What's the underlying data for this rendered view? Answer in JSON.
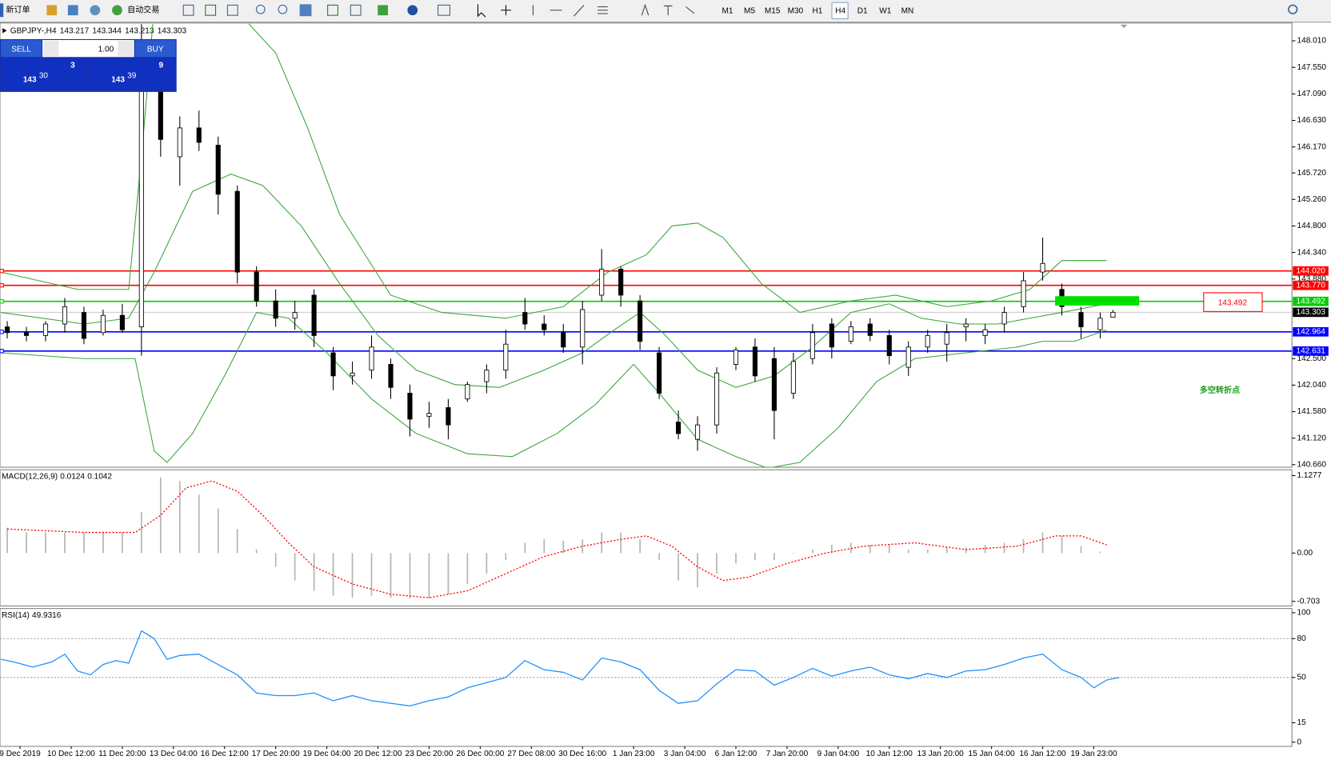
{
  "toolbar": {
    "new_order": "新订单",
    "auto_trading": "自动交易",
    "timeframes": [
      "M1",
      "M5",
      "M15",
      "M30",
      "H1",
      "H4",
      "D1",
      "W1",
      "MN"
    ],
    "active_timeframe": 5
  },
  "trade_panel": {
    "sell": "SELL",
    "buy": "BUY",
    "lots": "1.00",
    "bid": {
      "big": "143",
      "main": "30",
      "small": "3"
    },
    "ask": {
      "big": "143",
      "main": "39",
      "small": "9"
    }
  },
  "annotations": {
    "text": "多空转折点",
    "price_box": "143.492"
  },
  "chart_data": [
    {
      "type": "candlestick",
      "title": "GBPJPY-,H4",
      "ohlc": [
        143.217,
        143.344,
        143.213,
        143.303
      ],
      "xlim": [
        -3,
        199
      ],
      "ylim": [
        140.616,
        148.305
      ],
      "yticks": [
        {
          "value": 148.01,
          "label": "148.010"
        },
        {
          "value": 147.55,
          "label": "147.550"
        },
        {
          "value": 147.09,
          "label": "147.090"
        },
        {
          "value": 146.63,
          "label": "146.630"
        },
        {
          "value": 146.17,
          "label": "146.170"
        },
        {
          "value": 145.72,
          "label": "145.720"
        },
        {
          "value": 145.26,
          "label": "145.260"
        },
        {
          "value": 144.8,
          "label": "144.800"
        },
        {
          "value": 144.34,
          "label": "144.340"
        },
        {
          "value": 143.88,
          "label": "143.880"
        },
        {
          "value": 142.5,
          "label": "142.500"
        },
        {
          "value": 142.04,
          "label": "142.040"
        },
        {
          "value": 141.58,
          "label": "141.580"
        },
        {
          "value": 141.12,
          "label": "141.120"
        },
        {
          "value": 140.66,
          "label": "140.660"
        }
      ],
      "xticks": [
        {
          "value": 0,
          "label": "9 Dec 2019"
        },
        {
          "value": 8,
          "label": "10 Dec 12:00"
        },
        {
          "value": 16,
          "label": "11 Dec 20:00"
        },
        {
          "value": 24,
          "label": "13 Dec 04:00"
        },
        {
          "value": 32,
          "label": "16 Dec 12:00"
        },
        {
          "value": 40,
          "label": "17 Dec 20:00"
        },
        {
          "value": 48,
          "label": "19 Dec 04:00"
        },
        {
          "value": 56,
          "label": "20 Dec 12:00"
        },
        {
          "value": 64,
          "label": "23 Dec 20:00"
        },
        {
          "value": 72,
          "label": "26 Dec 00:00"
        },
        {
          "value": 80,
          "label": "27 Dec 08:00"
        },
        {
          "value": 88,
          "label": "30 Dec 16:00"
        },
        {
          "value": 96,
          "label": "1 Jan 23:00"
        },
        {
          "value": 104,
          "label": "3 Jan 04:00"
        },
        {
          "value": 112,
          "label": "6 Jan 12:00"
        },
        {
          "value": 120,
          "label": "7 Jan 20:00"
        },
        {
          "value": 128,
          "label": "9 Jan 04:00"
        },
        {
          "value": 136,
          "label": "10 Jan 12:00"
        },
        {
          "value": 144,
          "label": "13 Jan 20:00"
        },
        {
          "value": 152,
          "label": "15 Jan 04:00"
        },
        {
          "value": 160,
          "label": "16 Jan 12:00"
        },
        {
          "value": 168,
          "label": "19 Jan 23:00"
        }
      ],
      "levels": [
        {
          "value": 144.02,
          "label": "144.020",
          "color": "#ff0000"
        },
        {
          "value": 143.77,
          "label": "143.770",
          "color": "#ff0000"
        },
        {
          "value": 143.492,
          "color": "#00cc00"
        },
        {
          "value": 143.303,
          "color": "#c8c8c8",
          "tag_color": "#000000"
        },
        {
          "value": 142.964,
          "color": "#0000ff"
        },
        {
          "value": 142.631,
          "color": "#0000ff"
        }
      ],
      "x": [
        -2,
        1,
        4,
        7,
        10,
        13,
        16,
        19,
        22,
        25,
        28,
        31,
        34,
        37,
        40,
        43,
        46,
        49,
        52,
        55,
        58,
        61,
        64,
        67,
        70,
        73,
        76,
        79,
        82,
        85,
        88,
        91,
        94,
        97,
        100,
        103,
        106,
        109,
        112,
        115,
        118,
        121,
        124,
        127,
        130,
        133,
        136,
        139,
        142,
        145,
        148,
        151,
        154,
        157,
        160,
        163,
        166,
        169,
        171
      ],
      "open": [
        143.05,
        142.95,
        142.9,
        143.1,
        143.3,
        142.95,
        143.25,
        143.05,
        147.3,
        146.0,
        146.5,
        146.2,
        145.4,
        144.0,
        143.5,
        143.2,
        143.6,
        142.6,
        142.2,
        142.3,
        142.4,
        141.9,
        141.5,
        141.65,
        141.8,
        142.1,
        142.3,
        143.3,
        143.1,
        142.95,
        142.7,
        143.6,
        144.05,
        143.5,
        142.6,
        141.4,
        141.1,
        141.35,
        142.4,
        142.7,
        142.5,
        141.9,
        142.5,
        143.1,
        142.8,
        143.1,
        142.9,
        142.35,
        142.7,
        142.75,
        143.05,
        142.9,
        143.1,
        143.4,
        144.0,
        143.7,
        143.3,
        143.0,
        143.217
      ],
      "high": [
        143.15,
        143.05,
        143.15,
        143.55,
        143.4,
        143.35,
        143.45,
        148.3,
        147.45,
        146.7,
        146.8,
        146.35,
        145.5,
        144.1,
        143.7,
        143.5,
        143.7,
        142.7,
        142.45,
        142.9,
        142.5,
        142.05,
        141.75,
        141.8,
        142.1,
        142.4,
        143.0,
        143.55,
        143.25,
        143.1,
        143.5,
        144.4,
        144.1,
        143.6,
        142.7,
        141.6,
        141.5,
        142.35,
        142.7,
        142.85,
        142.7,
        142.6,
        143.1,
        143.2,
        143.15,
        143.2,
        143.0,
        142.8,
        143.0,
        143.1,
        143.2,
        143.1,
        143.4,
        144.0,
        144.6,
        143.8,
        143.4,
        143.3,
        143.344
      ],
      "low": [
        142.85,
        142.8,
        142.8,
        142.95,
        142.75,
        142.9,
        142.95,
        142.55,
        146.0,
        145.5,
        146.1,
        145.0,
        143.8,
        143.4,
        143.05,
        143.0,
        142.7,
        141.95,
        142.05,
        142.15,
        141.8,
        141.15,
        141.3,
        141.1,
        141.75,
        141.9,
        142.15,
        143.0,
        142.9,
        142.6,
        142.4,
        143.5,
        143.4,
        142.65,
        141.8,
        141.1,
        140.9,
        141.2,
        142.3,
        142.1,
        141.1,
        141.8,
        142.4,
        142.5,
        142.75,
        142.8,
        142.4,
        142.2,
        142.6,
        142.45,
        142.8,
        142.75,
        142.95,
        143.3,
        143.85,
        143.25,
        142.85,
        142.85,
        143.213
      ],
      "close": [
        142.95,
        142.9,
        143.1,
        143.4,
        142.85,
        143.25,
        143.0,
        147.3,
        146.3,
        146.5,
        146.25,
        145.35,
        144.0,
        143.5,
        143.2,
        143.3,
        142.9,
        142.2,
        142.25,
        142.7,
        142.0,
        141.45,
        141.55,
        141.35,
        142.05,
        142.3,
        142.75,
        143.1,
        143.0,
        142.7,
        143.35,
        144.05,
        143.6,
        142.8,
        141.9,
        141.2,
        141.35,
        142.25,
        142.65,
        142.2,
        141.6,
        142.45,
        142.95,
        142.7,
        143.05,
        142.9,
        142.55,
        142.7,
        142.9,
        142.95,
        143.1,
        143.0,
        143.3,
        143.85,
        144.15,
        143.4,
        143.05,
        143.2,
        143.303
      ],
      "series": [
        {
          "color": "#3aa53a",
          "x": [
            -3,
            9,
            17,
            19,
            21,
            28,
            35,
            40,
            45,
            50,
            54,
            58,
            66,
            76,
            85,
            92,
            98,
            102,
            106,
            110,
            116,
            122,
            130,
            137,
            145,
            152,
            158,
            163,
            170
          ],
          "values": [
            144.0,
            143.7,
            143.7,
            146.0,
            148.6,
            148.6,
            148.4,
            147.8,
            146.5,
            145.0,
            144.3,
            143.6,
            143.3,
            143.2,
            143.4,
            144.0,
            144.3,
            144.8,
            144.85,
            144.6,
            143.8,
            143.3,
            143.5,
            143.6,
            143.4,
            143.5,
            143.7,
            144.2,
            144.2
          ]
        },
        {
          "color": "#3aa53a",
          "x": [
            -3,
            10,
            17,
            21,
            27,
            33,
            38,
            44,
            50,
            56,
            62,
            68,
            75,
            82,
            88,
            93,
            97,
            101,
            106,
            112,
            118,
            124,
            130,
            136,
            141,
            147,
            153,
            158,
            163,
            170
          ],
          "values": [
            143.3,
            143.1,
            143.2,
            144.0,
            145.4,
            145.7,
            145.5,
            144.8,
            143.8,
            142.9,
            142.3,
            142.05,
            142.0,
            142.3,
            142.6,
            143.0,
            143.3,
            142.9,
            142.3,
            142.0,
            142.2,
            142.7,
            143.3,
            143.45,
            143.2,
            143.1,
            143.1,
            143.2,
            143.3,
            143.45
          ]
        },
        {
          "color": "#3aa53a",
          "x": [
            -3,
            10,
            18,
            21,
            23,
            27,
            32,
            37,
            42,
            48,
            55,
            62,
            70,
            77,
            84,
            90,
            96,
            100,
            106,
            112,
            117,
            122,
            128,
            134,
            140,
            148,
            156,
            160,
            165,
            170
          ],
          "values": [
            142.6,
            142.5,
            142.5,
            140.9,
            140.7,
            141.2,
            142.2,
            143.3,
            143.2,
            142.6,
            141.8,
            141.2,
            140.85,
            140.8,
            141.2,
            141.7,
            142.4,
            141.9,
            141.1,
            140.8,
            140.6,
            140.7,
            141.3,
            142.1,
            142.5,
            142.6,
            142.7,
            142.8,
            142.8,
            143.0
          ]
        }
      ]
    },
    {
      "type": "macd",
      "title": "MACD(12,26,9)",
      "readings": [
        0.0124,
        0.1042
      ],
      "ylim": [
        -0.77,
        1.2
      ],
      "yticks": [
        1.1277,
        {
          "value": 0,
          "label": "0.00"
        },
        -0.703
      ],
      "series": [
        {
          "type": "bar",
          "color": "#b4b4b4",
          "x": [
            -2,
            1,
            4,
            7,
            10,
            13,
            16,
            19,
            22,
            25,
            28,
            31,
            34,
            37,
            40,
            43,
            46,
            49,
            52,
            55,
            58,
            61,
            64,
            67,
            70,
            73,
            76,
            79,
            82,
            85,
            88,
            91,
            94,
            97,
            100,
            103,
            106,
            109,
            112,
            115,
            118,
            121,
            124,
            127,
            130,
            133,
            136,
            139,
            142,
            145,
            148,
            151,
            154,
            157,
            160,
            163,
            166,
            169
          ],
          "values": [
            0.37,
            0.3,
            0.3,
            0.3,
            0.3,
            0.3,
            0.3,
            0.6,
            1.1,
            1.05,
            0.85,
            0.65,
            0.35,
            0.05,
            -0.2,
            -0.4,
            -0.55,
            -0.62,
            -0.65,
            -0.62,
            -0.65,
            -0.66,
            -0.66,
            -0.6,
            -0.45,
            -0.3,
            -0.1,
            0.15,
            0.2,
            0.18,
            0.2,
            0.3,
            0.3,
            0.2,
            -0.1,
            -0.4,
            -0.5,
            -0.3,
            -0.15,
            -0.1,
            -0.1,
            0.0,
            0.05,
            0.12,
            0.15,
            0.12,
            0.12,
            0.05,
            0.05,
            0.08,
            0.08,
            0.12,
            0.15,
            0.2,
            0.3,
            0.25,
            0.1,
            0.02
          ]
        },
        {
          "type": "line",
          "color": "#ff0000",
          "dash": true,
          "x": [
            -2,
            10,
            18,
            22,
            26,
            30,
            34,
            38,
            42,
            46,
            52,
            58,
            64,
            70,
            76,
            82,
            88,
            94,
            98,
            102,
            106,
            110,
            114,
            120,
            126,
            132,
            140,
            148,
            156,
            162,
            166,
            170
          ],
          "values": [
            0.35,
            0.3,
            0.3,
            0.55,
            0.95,
            1.05,
            0.9,
            0.55,
            0.15,
            -0.2,
            -0.45,
            -0.6,
            -0.65,
            -0.55,
            -0.3,
            -0.05,
            0.1,
            0.2,
            0.25,
            0.1,
            -0.2,
            -0.4,
            -0.35,
            -0.15,
            0.0,
            0.1,
            0.15,
            0.05,
            0.1,
            0.25,
            0.25,
            0.12
          ]
        }
      ]
    },
    {
      "type": "rsi",
      "title": "RSI(14)",
      "readings": [
        49.9316
      ],
      "ylim": [
        -2.6,
        102.6
      ],
      "yticks": [
        100,
        80,
        50,
        15,
        0
      ],
      "levels": [
        80,
        50
      ],
      "series": [
        {
          "type": "line",
          "color": "#1e90ff",
          "x": [
            -3,
            -1,
            2,
            5,
            7,
            9,
            11,
            13,
            15,
            17,
            19,
            21,
            23,
            25,
            28,
            31,
            34,
            37,
            40,
            43,
            46,
            49,
            52,
            55,
            58,
            61,
            64,
            67,
            70,
            73,
            76,
            79,
            82,
            85,
            88,
            91,
            94,
            97,
            100,
            103,
            106,
            109,
            112,
            115,
            118,
            121,
            124,
            127,
            130,
            133,
            136,
            139,
            142,
            145,
            148,
            151,
            154,
            157,
            160,
            163,
            166,
            168,
            170,
            172
          ],
          "values": [
            64,
            62,
            58,
            62,
            68,
            55,
            52,
            60,
            63,
            61,
            86,
            80,
            64,
            67,
            68,
            60,
            52,
            38,
            36,
            36,
            38,
            32,
            36,
            32,
            30,
            28,
            32,
            35,
            42,
            46,
            50,
            63,
            56,
            54,
            48,
            65,
            62,
            56,
            40,
            30,
            32,
            45,
            56,
            55,
            44,
            50,
            57,
            51,
            55,
            58,
            52,
            49,
            53,
            50,
            55,
            56,
            60,
            65,
            68,
            56,
            50,
            42,
            48,
            50
          ]
        }
      ]
    }
  ]
}
